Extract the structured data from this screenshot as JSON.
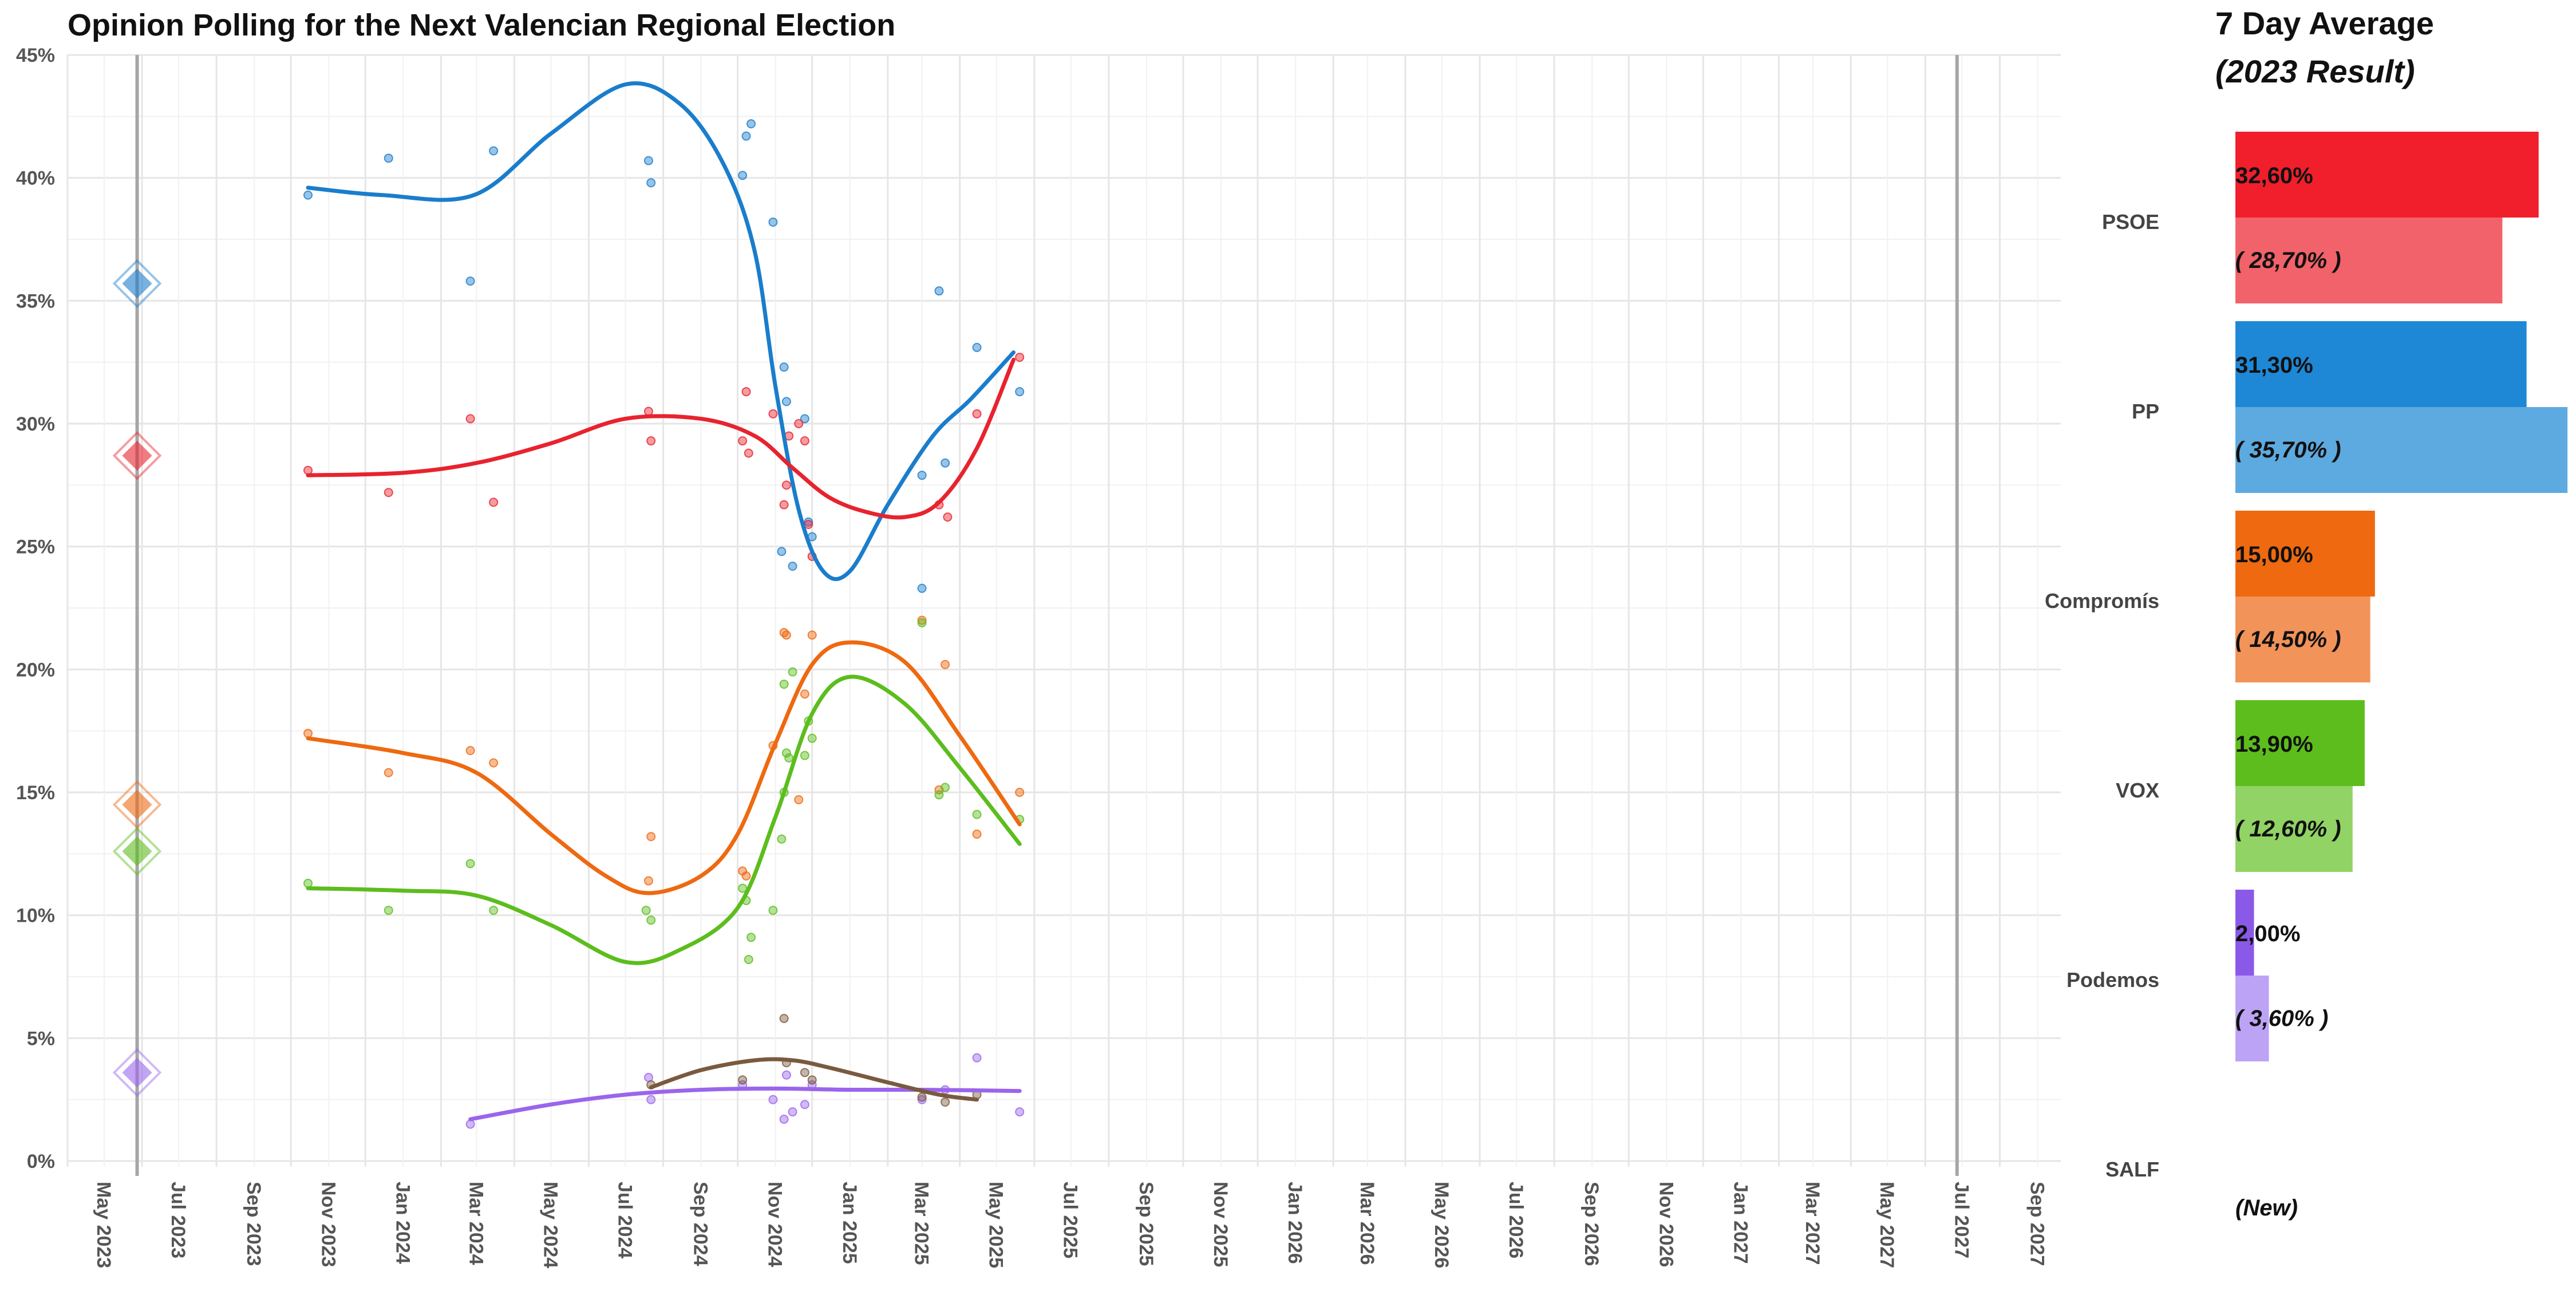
{
  "chart_data": {
    "type": "scatter",
    "title": "Opinion Polling for the Next Valencian Regional Election",
    "xlabel": "",
    "ylabel": "",
    "ylim": [
      0,
      45
    ],
    "yticks": [
      "0%",
      "5%",
      "10%",
      "15%",
      "20%",
      "25%",
      "30%",
      "35%",
      "40%",
      "45%"
    ],
    "xlim": [
      "2023-04-01",
      "2027-09-20"
    ],
    "xticks": [
      {
        "date": "2023-05-01",
        "label": "May 2023"
      },
      {
        "date": "2023-07-01",
        "label": "Jul 2023"
      },
      {
        "date": "2023-09-01",
        "label": "Sep 2023"
      },
      {
        "date": "2023-11-01",
        "label": "Nov 2023"
      },
      {
        "date": "2024-01-01",
        "label": "Jan 2024"
      },
      {
        "date": "2024-03-01",
        "label": "Mar 2024"
      },
      {
        "date": "2024-05-01",
        "label": "May 2024"
      },
      {
        "date": "2024-07-01",
        "label": "Jul 2024"
      },
      {
        "date": "2024-09-01",
        "label": "Sep 2024"
      },
      {
        "date": "2024-11-01",
        "label": "Nov 2024"
      },
      {
        "date": "2025-01-01",
        "label": "Jan 2025"
      },
      {
        "date": "2025-03-01",
        "label": "Mar 2025"
      },
      {
        "date": "2025-05-01",
        "label": "May 2025"
      },
      {
        "date": "2025-07-01",
        "label": "Jul 2025"
      },
      {
        "date": "2025-09-01",
        "label": "Sep 2025"
      },
      {
        "date": "2025-11-01",
        "label": "Nov 2025"
      },
      {
        "date": "2026-01-01",
        "label": "Jan 2026"
      },
      {
        "date": "2026-03-01",
        "label": "Mar 2026"
      },
      {
        "date": "2026-05-01",
        "label": "May 2026"
      },
      {
        "date": "2026-07-01",
        "label": "Jul 2026"
      },
      {
        "date": "2026-09-01",
        "label": "Sep 2026"
      },
      {
        "date": "2026-11-01",
        "label": "Nov 2026"
      },
      {
        "date": "2027-01-01",
        "label": "Jan 2027"
      },
      {
        "date": "2027-03-01",
        "label": "Mar 2027"
      },
      {
        "date": "2027-05-01",
        "label": "May 2027"
      },
      {
        "date": "2027-07-01",
        "label": "Jul 2027"
      },
      {
        "date": "2027-09-01",
        "label": "Sep 2027"
      }
    ],
    "vlines": [
      "2023-05-28",
      "2027-06-27"
    ],
    "grid": true,
    "series": [
      {
        "color": "#1a7dcc",
        "result_2023": 35.7,
        "points": [
          [
            "2023-10-15",
            39.3
          ],
          [
            "2023-12-20",
            40.8
          ],
          [
            "2024-02-25",
            35.8
          ],
          [
            "2024-03-15",
            41.1
          ],
          [
            "2024-07-20",
            40.7
          ],
          [
            "2024-07-22",
            39.8
          ],
          [
            "2024-10-05",
            40.1
          ],
          [
            "2024-10-08",
            41.7
          ],
          [
            "2024-10-12",
            42.2
          ],
          [
            "2024-10-30",
            38.2
          ],
          [
            "2024-11-08",
            32.3
          ],
          [
            "2024-11-10",
            30.9
          ],
          [
            "2024-11-06",
            24.8
          ],
          [
            "2024-11-15",
            24.2
          ],
          [
            "2024-11-25",
            30.2
          ],
          [
            "2024-11-28",
            26.0
          ],
          [
            "2024-12-01",
            25.4
          ],
          [
            "2025-03-01",
            27.9
          ],
          [
            "2025-03-01",
            23.3
          ],
          [
            "2025-03-15",
            35.4
          ],
          [
            "2025-03-20",
            28.4
          ],
          [
            "2025-04-15",
            33.1
          ],
          [
            "2025-05-20",
            31.3
          ]
        ],
        "trend": [
          [
            "2023-10-15",
            39.6
          ],
          [
            "2023-12-15",
            39.3
          ],
          [
            "2024-02-28",
            39.3
          ],
          [
            "2024-05-01",
            41.8
          ],
          [
            "2024-07-01",
            43.8
          ],
          [
            "2024-08-15",
            43.0
          ],
          [
            "2024-09-20",
            40.5
          ],
          [
            "2024-10-15",
            37.0
          ],
          [
            "2024-11-01",
            31.5
          ],
          [
            "2024-11-20",
            26.5
          ],
          [
            "2024-12-10",
            24.0
          ],
          [
            "2025-01-01",
            24.0
          ],
          [
            "2025-02-01",
            26.7
          ],
          [
            "2025-03-10",
            29.5
          ],
          [
            "2025-04-10",
            31.0
          ],
          [
            "2025-05-15",
            32.9
          ]
        ]
      },
      {
        "color": "#e8232e",
        "result_2023": 28.7,
        "points": [
          [
            "2023-10-15",
            28.1
          ],
          [
            "2023-12-20",
            27.2
          ],
          [
            "2024-02-25",
            30.2
          ],
          [
            "2024-03-15",
            26.8
          ],
          [
            "2024-07-20",
            30.5
          ],
          [
            "2024-07-22",
            29.3
          ],
          [
            "2024-10-05",
            29.3
          ],
          [
            "2024-10-08",
            31.3
          ],
          [
            "2024-10-10",
            28.8
          ],
          [
            "2024-10-30",
            30.4
          ],
          [
            "2024-11-08",
            26.7
          ],
          [
            "2024-11-10",
            27.5
          ],
          [
            "2024-11-12",
            29.5
          ],
          [
            "2024-11-20",
            30.0
          ],
          [
            "2024-11-25",
            29.3
          ],
          [
            "2024-11-28",
            25.9
          ],
          [
            "2024-12-01",
            24.6
          ],
          [
            "2025-03-15",
            26.7
          ],
          [
            "2025-03-22",
            26.2
          ],
          [
            "2025-04-15",
            30.4
          ],
          [
            "2025-05-20",
            32.7
          ]
        ],
        "trend": [
          [
            "2023-10-15",
            27.9
          ],
          [
            "2024-01-01",
            28.0
          ],
          [
            "2024-03-01",
            28.4
          ],
          [
            "2024-05-01",
            29.2
          ],
          [
            "2024-07-01",
            30.2
          ],
          [
            "2024-09-01",
            30.2
          ],
          [
            "2024-10-15",
            29.5
          ],
          [
            "2024-11-15",
            28.2
          ],
          [
            "2024-12-15",
            27.0
          ],
          [
            "2025-01-15",
            26.4
          ],
          [
            "2025-02-15",
            26.2
          ],
          [
            "2025-03-15",
            26.8
          ],
          [
            "2025-04-15",
            29.0
          ],
          [
            "2025-05-15",
            32.6
          ]
        ]
      },
      {
        "color": "#ee6910",
        "result_2023": 14.5,
        "points": [
          [
            "2023-10-15",
            17.4
          ],
          [
            "2023-12-20",
            15.8
          ],
          [
            "2024-02-25",
            16.7
          ],
          [
            "2024-03-15",
            16.2
          ],
          [
            "2024-07-20",
            11.4
          ],
          [
            "2024-07-22",
            13.2
          ],
          [
            "2024-10-05",
            11.8
          ],
          [
            "2024-10-08",
            11.6
          ],
          [
            "2024-10-30",
            16.9
          ],
          [
            "2024-11-08",
            21.5
          ],
          [
            "2024-11-10",
            21.4
          ],
          [
            "2024-11-20",
            14.7
          ],
          [
            "2024-11-25",
            19.0
          ],
          [
            "2024-12-01",
            21.4
          ],
          [
            "2025-03-01",
            22.0
          ],
          [
            "2025-03-15",
            15.1
          ],
          [
            "2025-03-20",
            20.2
          ],
          [
            "2025-04-15",
            13.3
          ],
          [
            "2025-05-20",
            15.0
          ]
        ],
        "trend": [
          [
            "2023-10-15",
            17.2
          ],
          [
            "2024-01-01",
            16.6
          ],
          [
            "2024-03-01",
            15.8
          ],
          [
            "2024-05-01",
            13.3
          ],
          [
            "2024-06-15",
            11.6
          ],
          [
            "2024-07-20",
            10.9
          ],
          [
            "2024-09-01",
            11.6
          ],
          [
            "2024-10-01",
            13.3
          ],
          [
            "2024-11-01",
            17.0
          ],
          [
            "2024-12-01",
            20.2
          ],
          [
            "2025-01-01",
            21.1
          ],
          [
            "2025-02-15",
            20.3
          ],
          [
            "2025-04-01",
            17.3
          ],
          [
            "2025-05-20",
            13.7
          ]
        ]
      },
      {
        "color": "#5cbd1d",
        "result_2023": 12.6,
        "points": [
          [
            "2023-10-15",
            11.3
          ],
          [
            "2023-12-20",
            10.2
          ],
          [
            "2024-02-25",
            12.1
          ],
          [
            "2024-03-15",
            10.2
          ],
          [
            "2024-07-18",
            10.2
          ],
          [
            "2024-07-22",
            9.8
          ],
          [
            "2024-10-05",
            11.1
          ],
          [
            "2024-10-08",
            10.6
          ],
          [
            "2024-10-10",
            8.2
          ],
          [
            "2024-10-12",
            9.1
          ],
          [
            "2024-10-30",
            10.2
          ],
          [
            "2024-11-06",
            13.1
          ],
          [
            "2024-11-08",
            15.0
          ],
          [
            "2024-11-10",
            16.6
          ],
          [
            "2024-11-12",
            16.4
          ],
          [
            "2024-11-08",
            19.4
          ],
          [
            "2024-11-15",
            19.9
          ],
          [
            "2024-11-28",
            17.9
          ],
          [
            "2024-12-01",
            17.2
          ],
          [
            "2024-11-25",
            16.5
          ],
          [
            "2025-03-01",
            21.9
          ],
          [
            "2025-03-15",
            14.9
          ],
          [
            "2025-03-20",
            15.2
          ],
          [
            "2025-04-15",
            14.1
          ],
          [
            "2025-05-20",
            13.9
          ]
        ],
        "trend": [
          [
            "2023-10-15",
            11.1
          ],
          [
            "2024-01-01",
            11.0
          ],
          [
            "2024-03-01",
            10.8
          ],
          [
            "2024-05-01",
            9.6
          ],
          [
            "2024-07-01",
            8.1
          ],
          [
            "2024-08-15",
            8.6
          ],
          [
            "2024-10-01",
            10.3
          ],
          [
            "2024-11-01",
            14.0
          ],
          [
            "2024-12-01",
            18.2
          ],
          [
            "2025-01-01",
            19.7
          ],
          [
            "2025-02-15",
            18.6
          ],
          [
            "2025-04-01",
            16.0
          ],
          [
            "2025-05-20",
            12.9
          ]
        ]
      },
      {
        "color": "#9a65ec",
        "result_2023": 3.6,
        "points": [
          [
            "2024-02-25",
            1.5
          ],
          [
            "2024-07-20",
            3.4
          ],
          [
            "2024-07-22",
            2.5
          ],
          [
            "2024-10-05",
            3.1
          ],
          [
            "2024-10-30",
            2.5
          ],
          [
            "2024-11-08",
            1.7
          ],
          [
            "2024-11-10",
            3.5
          ],
          [
            "2024-11-15",
            2.0
          ],
          [
            "2024-11-25",
            2.3
          ],
          [
            "2024-12-01",
            3.1
          ],
          [
            "2025-03-01",
            2.5
          ],
          [
            "2025-03-20",
            2.9
          ],
          [
            "2025-04-15",
            4.2
          ],
          [
            "2025-05-20",
            2.0
          ]
        ],
        "trend": [
          [
            "2024-02-25",
            1.7
          ],
          [
            "2024-05-01",
            2.3
          ],
          [
            "2024-07-01",
            2.7
          ],
          [
            "2024-09-01",
            2.9
          ],
          [
            "2024-11-01",
            2.95
          ],
          [
            "2025-01-01",
            2.9
          ],
          [
            "2025-03-01",
            2.9
          ],
          [
            "2025-05-20",
            2.85
          ]
        ]
      },
      {
        "color": "#7a5a3f",
        "points": [
          [
            "2024-07-22",
            3.1
          ],
          [
            "2024-10-05",
            3.3
          ],
          [
            "2024-11-08",
            5.8
          ],
          [
            "2024-11-10",
            4.0
          ],
          [
            "2024-11-25",
            3.6
          ],
          [
            "2024-12-01",
            3.3
          ],
          [
            "2025-03-01",
            2.6
          ],
          [
            "2025-03-20",
            2.4
          ],
          [
            "2025-04-15",
            2.7
          ]
        ],
        "trend": [
          [
            "2024-07-22",
            3.0
          ],
          [
            "2024-09-01",
            3.7
          ],
          [
            "2024-10-15",
            4.1
          ],
          [
            "2024-11-15",
            4.1
          ],
          [
            "2024-12-15",
            3.8
          ],
          [
            "2025-02-01",
            3.2
          ],
          [
            "2025-03-15",
            2.7
          ],
          [
            "2025-04-15",
            2.5
          ]
        ]
      }
    ],
    "side_bars": {
      "title": "7 Day Average",
      "subtitle": "(2023 Result)",
      "xlim": [
        0,
        36
      ],
      "parties": [
        {
          "name": "PSOE",
          "avg": 32.6,
          "avg_label": "32,60%",
          "result": 28.7,
          "result_label": "( 28,70% )",
          "color": "#f01f2b",
          "result_color": "#f2626a"
        },
        {
          "name": "PP",
          "avg": 31.3,
          "avg_label": "31,30%",
          "result": 35.7,
          "result_label": "( 35,70% )",
          "color": "#1e88d6",
          "result_color": "#5daae0"
        },
        {
          "name": "Compromís",
          "avg": 15.0,
          "avg_label": "15,00%",
          "result": 14.5,
          "result_label": "( 14,50% )",
          "color": "#ee6910",
          "result_color": "#f2935a"
        },
        {
          "name": "VOX",
          "avg": 13.9,
          "avg_label": "13,90%",
          "result": 12.6,
          "result_label": "( 12,60% )",
          "color": "#5cbd1d",
          "result_color": "#91d364"
        },
        {
          "name": "Podemos",
          "avg": 2.0,
          "avg_label": "2,00%",
          "result": 3.6,
          "result_label": "( 3,60% )",
          "color": "#8b59e8",
          "result_color": "#bca3f5"
        },
        {
          "name": "SALF",
          "avg": null,
          "avg_label": "",
          "result": null,
          "result_label": "(New)",
          "color": "#7a5a3f",
          "result_color": "#a88c73"
        }
      ]
    }
  }
}
